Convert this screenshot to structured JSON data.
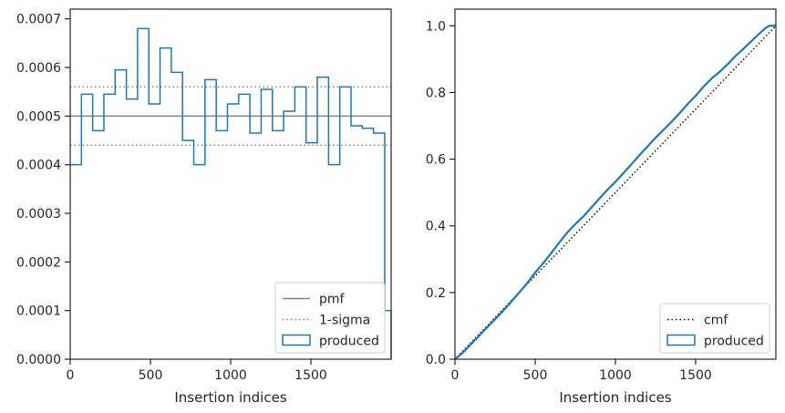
{
  "chart_data": [
    {
      "type": "step-histogram",
      "xlabel": "Insertion indices",
      "ylabel": "",
      "xlim": [
        0,
        2000
      ],
      "ylim": [
        0,
        0.00072
      ],
      "xticks": [
        0,
        500,
        1000,
        1500
      ],
      "yticks": [
        0.0,
        0.0001,
        0.0002,
        0.0003,
        0.0004,
        0.0005,
        0.0006,
        0.0007
      ],
      "ytick_labels": [
        "0.0000",
        "0.0001",
        "0.0002",
        "0.0003",
        "0.0004",
        "0.0005",
        "0.0006",
        "0.0007"
      ],
      "xtick_labels": [
        "0",
        "500",
        "1000",
        "1500"
      ],
      "reference_lines": [
        {
          "name": "pmf",
          "y": 0.0005,
          "style": "solid",
          "color": "#808080"
        },
        {
          "name": "1-sigma",
          "y": 0.00056,
          "style": "dotted",
          "color": "#808080"
        },
        {
          "name": "1-sigma",
          "y": 0.00044,
          "style": "dotted",
          "color": "#808080"
        }
      ],
      "series": [
        {
          "name": "produced",
          "color": "#1f77b4",
          "bin_edges": [
            0,
            70,
            140,
            210,
            280,
            350,
            420,
            490,
            560,
            630,
            700,
            770,
            840,
            910,
            980,
            1050,
            1120,
            1190,
            1260,
            1330,
            1400,
            1470,
            1540,
            1610,
            1680,
            1750,
            1820,
            1890,
            1960,
            2000
          ],
          "values": [
            0.0004,
            0.000545,
            0.00047,
            0.000545,
            0.000595,
            0.000535,
            0.00068,
            0.000525,
            0.00064,
            0.00059,
            0.00045,
            0.0004,
            0.000575,
            0.00047,
            0.000525,
            0.000545,
            0.000465,
            0.000555,
            0.00047,
            0.00051,
            0.00056,
            0.000445,
            0.00058,
            0.0004,
            0.00056,
            0.00048,
            0.000475,
            0.000465,
            0.0001
          ]
        }
      ],
      "legend": {
        "placement": "lower-right",
        "entries": [
          {
            "label": "pmf",
            "style": "solid-line",
            "color": "#808080"
          },
          {
            "label": "1-sigma",
            "style": "dotted-line",
            "color": "#808080"
          },
          {
            "label": "produced",
            "style": "patch",
            "color": "#1f77b4"
          }
        ]
      }
    },
    {
      "type": "line",
      "xlabel": "Insertion indices",
      "ylabel": "",
      "xlim": [
        0,
        2000
      ],
      "ylim": [
        0,
        1.05
      ],
      "xticks": [
        0,
        500,
        1000,
        1500
      ],
      "xtick_labels": [
        "0",
        "500",
        "1000",
        "1500"
      ],
      "yticks": [
        0.0,
        0.2,
        0.4,
        0.6,
        0.8,
        1.0
      ],
      "ytick_labels": [
        "0.0",
        "0.2",
        "0.4",
        "0.6",
        "0.8",
        "1.0"
      ],
      "series": [
        {
          "name": "cmf",
          "style": "dotted",
          "color": "#000000",
          "x": [
            0,
            2000
          ],
          "y": [
            0,
            1.0
          ]
        },
        {
          "name": "produced",
          "style": "step",
          "color": "#1f77b4",
          "x": [
            0,
            50,
            100,
            150,
            200,
            250,
            300,
            350,
            400,
            450,
            500,
            550,
            600,
            650,
            700,
            750,
            800,
            850,
            900,
            950,
            1000,
            1050,
            1100,
            1150,
            1200,
            1250,
            1300,
            1350,
            1400,
            1450,
            1500,
            1550,
            1600,
            1650,
            1700,
            1750,
            1800,
            1850,
            1900,
            1940,
            1960,
            2000
          ],
          "y": [
            0,
            0.02,
            0.045,
            0.07,
            0.095,
            0.12,
            0.145,
            0.172,
            0.2,
            0.228,
            0.26,
            0.288,
            0.318,
            0.35,
            0.38,
            0.405,
            0.428,
            0.455,
            0.482,
            0.508,
            0.532,
            0.558,
            0.585,
            0.612,
            0.638,
            0.664,
            0.688,
            0.712,
            0.738,
            0.765,
            0.79,
            0.818,
            0.842,
            0.862,
            0.885,
            0.91,
            0.932,
            0.955,
            0.978,
            0.995,
            1.0,
            1.0
          ]
        }
      ],
      "legend": {
        "placement": "lower-right",
        "entries": [
          {
            "label": "cmf",
            "style": "dotted-line",
            "color": "#000000"
          },
          {
            "label": "produced",
            "style": "patch",
            "color": "#1f77b4"
          }
        ]
      }
    }
  ]
}
